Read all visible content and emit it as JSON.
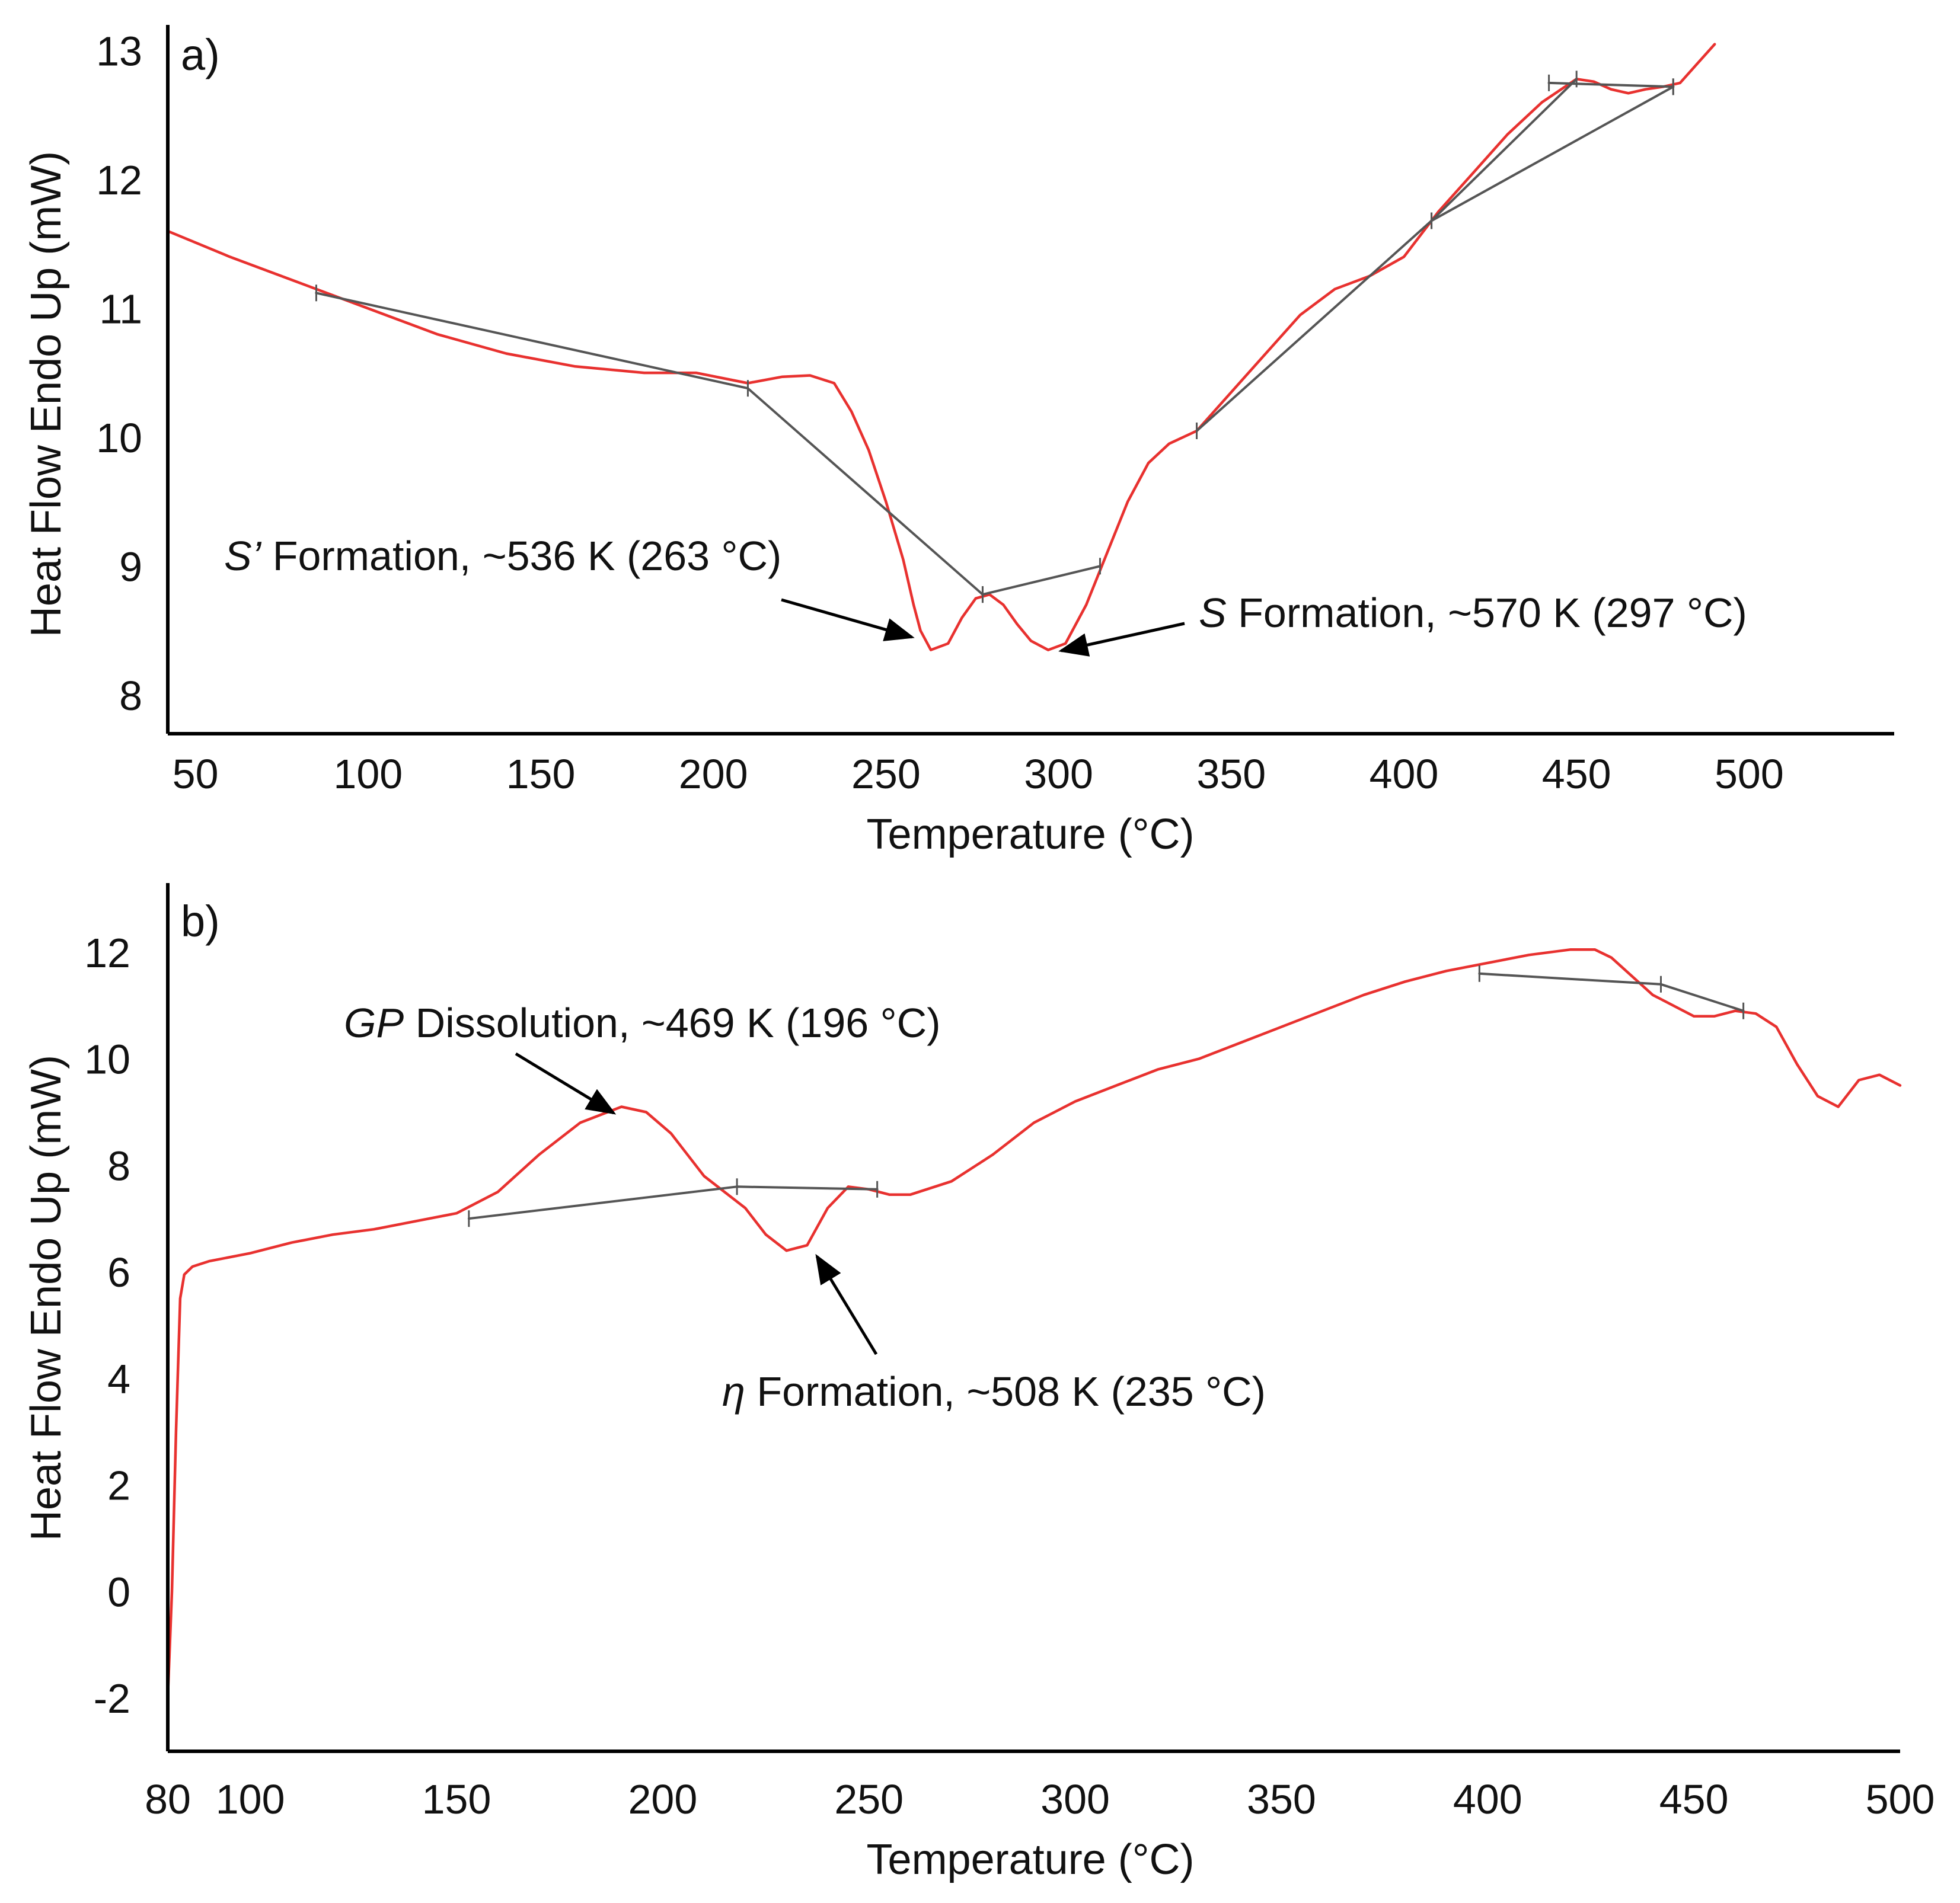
{
  "chart_data": [
    {
      "type": "line",
      "panel_label": "a)",
      "xlabel": "Temperature (°C)",
      "ylabel": "Heat Flow Endo Up (mW)",
      "xlim": [
        42,
        542
      ],
      "ylim": [
        7.7,
        13.2
      ],
      "xticks": [
        50,
        100,
        150,
        200,
        250,
        300,
        350,
        400,
        450,
        500
      ],
      "xtick_labels": [
        "50",
        "100",
        "150",
        "200",
        "250",
        "300",
        "350",
        "400",
        "450",
        "500"
      ],
      "yticks": [
        8,
        9,
        10,
        11,
        12,
        13
      ],
      "ytick_labels": [
        "8",
        "9",
        "10",
        "11",
        "12",
        "13"
      ],
      "series": [
        {
          "name": "DSC curve",
          "color": "#e8312f",
          "x": [
            42,
            60,
            80,
            100,
            120,
            140,
            160,
            180,
            195,
            210,
            220,
            228,
            235,
            240,
            245,
            250,
            255,
            258,
            260,
            263,
            268,
            272,
            276,
            280,
            284,
            288,
            292,
            297,
            302,
            308,
            314,
            320,
            326,
            332,
            340,
            350,
            360,
            370,
            380,
            390,
            400,
            410,
            420,
            430,
            440,
            450,
            455,
            460,
            465,
            470,
            475,
            480,
            485,
            490
          ],
          "y": [
            11.6,
            11.4,
            11.2,
            11.0,
            10.8,
            10.65,
            10.55,
            10.5,
            10.5,
            10.42,
            10.47,
            10.48,
            10.42,
            10.2,
            9.9,
            9.5,
            9.05,
            8.7,
            8.5,
            8.35,
            8.4,
            8.6,
            8.75,
            8.78,
            8.7,
            8.55,
            8.42,
            8.35,
            8.4,
            8.7,
            9.1,
            9.5,
            9.8,
            9.95,
            10.05,
            10.35,
            10.65,
            10.95,
            11.15,
            11.25,
            11.4,
            11.75,
            12.05,
            12.35,
            12.6,
            12.78,
            12.76,
            12.7,
            12.67,
            12.7,
            12.72,
            12.75,
            12.9,
            13.05
          ]
        },
        {
          "name": "baseline 1",
          "color": "#555555",
          "x": [
            85,
            210,
            278
          ],
          "y": [
            11.12,
            10.38,
            8.78
          ]
        },
        {
          "name": "baseline 2",
          "color": "#555555",
          "x": [
            278,
            312
          ],
          "y": [
            8.78,
            9.0
          ]
        },
        {
          "name": "baseline 3",
          "color": "#555555",
          "x": [
            340,
            408,
            450
          ],
          "y": [
            10.05,
            11.68,
            12.78
          ]
        },
        {
          "name": "baseline 4",
          "color": "#555555",
          "x": [
            408,
            478
          ],
          "y": [
            11.68,
            12.72
          ]
        },
        {
          "name": "baseline 5",
          "color": "#555555",
          "x": [
            442,
            478
          ],
          "y": [
            12.75,
            12.72
          ]
        }
      ],
      "annotations": [
        {
          "text_italic": "S’",
          "text": " Formation, ~536 K (263 °C)",
          "point": [
            263,
            8.35
          ]
        },
        {
          "text_italic": "S",
          "text": " Formation, ~570 K (297 °C)",
          "point": [
            297,
            8.35
          ]
        }
      ]
    },
    {
      "type": "line",
      "panel_label": "b)",
      "xlabel": "Temperature (°C)",
      "ylabel": "Heat Flow Endo Up (mW)",
      "xlim": [
        80,
        500
      ],
      "ylim": [
        -3,
        13.3
      ],
      "xticks": [
        80,
        100,
        150,
        200,
        250,
        300,
        350,
        400,
        450,
        500
      ],
      "xtick_labels": [
        "80",
        "100",
        "150",
        "200",
        "250",
        "300",
        "350",
        "400",
        "450",
        "500"
      ],
      "yticks": [
        -2,
        0,
        2,
        4,
        6,
        8,
        10,
        12
      ],
      "ytick_labels": [
        "-2",
        "0",
        "2",
        "4",
        "6",
        "8",
        "10",
        "12"
      ],
      "series": [
        {
          "name": "DSC curve",
          "color": "#e8312f",
          "x": [
            80,
            81,
            82,
            83,
            84,
            86,
            90,
            100,
            110,
            120,
            130,
            140,
            150,
            160,
            170,
            180,
            190,
            196,
            202,
            210,
            220,
            225,
            230,
            235,
            240,
            245,
            250,
            255,
            260,
            270,
            280,
            290,
            300,
            310,
            320,
            330,
            340,
            350,
            360,
            370,
            380,
            390,
            400,
            410,
            420,
            426,
            430,
            440,
            450,
            455,
            460,
            465,
            470,
            475,
            480,
            485,
            490,
            495,
            500
          ],
          "y": [
            -2.0,
            0.0,
            3.0,
            5.5,
            5.95,
            6.1,
            6.2,
            6.35,
            6.55,
            6.7,
            6.8,
            6.95,
            7.1,
            7.5,
            8.2,
            8.8,
            9.1,
            9.0,
            8.6,
            7.8,
            7.2,
            6.7,
            6.4,
            6.5,
            7.2,
            7.6,
            7.55,
            7.45,
            7.45,
            7.7,
            8.2,
            8.8,
            9.2,
            9.5,
            9.8,
            10.0,
            10.3,
            10.6,
            10.9,
            11.2,
            11.45,
            11.65,
            11.8,
            11.95,
            12.05,
            12.05,
            11.9,
            11.2,
            10.8,
            10.8,
            10.9,
            10.85,
            10.6,
            9.9,
            9.3,
            9.1,
            9.6,
            9.7,
            9.5
          ]
        },
        {
          "name": "baseline 1",
          "color": "#555555",
          "x": [
            153,
            218,
            252
          ],
          "y": [
            7.0,
            7.6,
            7.55
          ]
        },
        {
          "name": "baseline 2",
          "color": "#555555",
          "x": [
            398,
            442,
            462
          ],
          "y": [
            11.6,
            11.4,
            10.9
          ]
        }
      ],
      "annotations": [
        {
          "text_italic": "GP",
          "text": " Dissolution, ~469 K (196 °C)",
          "point": [
            196,
            9.1
          ]
        },
        {
          "text_italic": "η",
          "text": " Formation, ~508 K (235 °C)",
          "point": [
            235,
            6.5
          ]
        }
      ]
    }
  ]
}
